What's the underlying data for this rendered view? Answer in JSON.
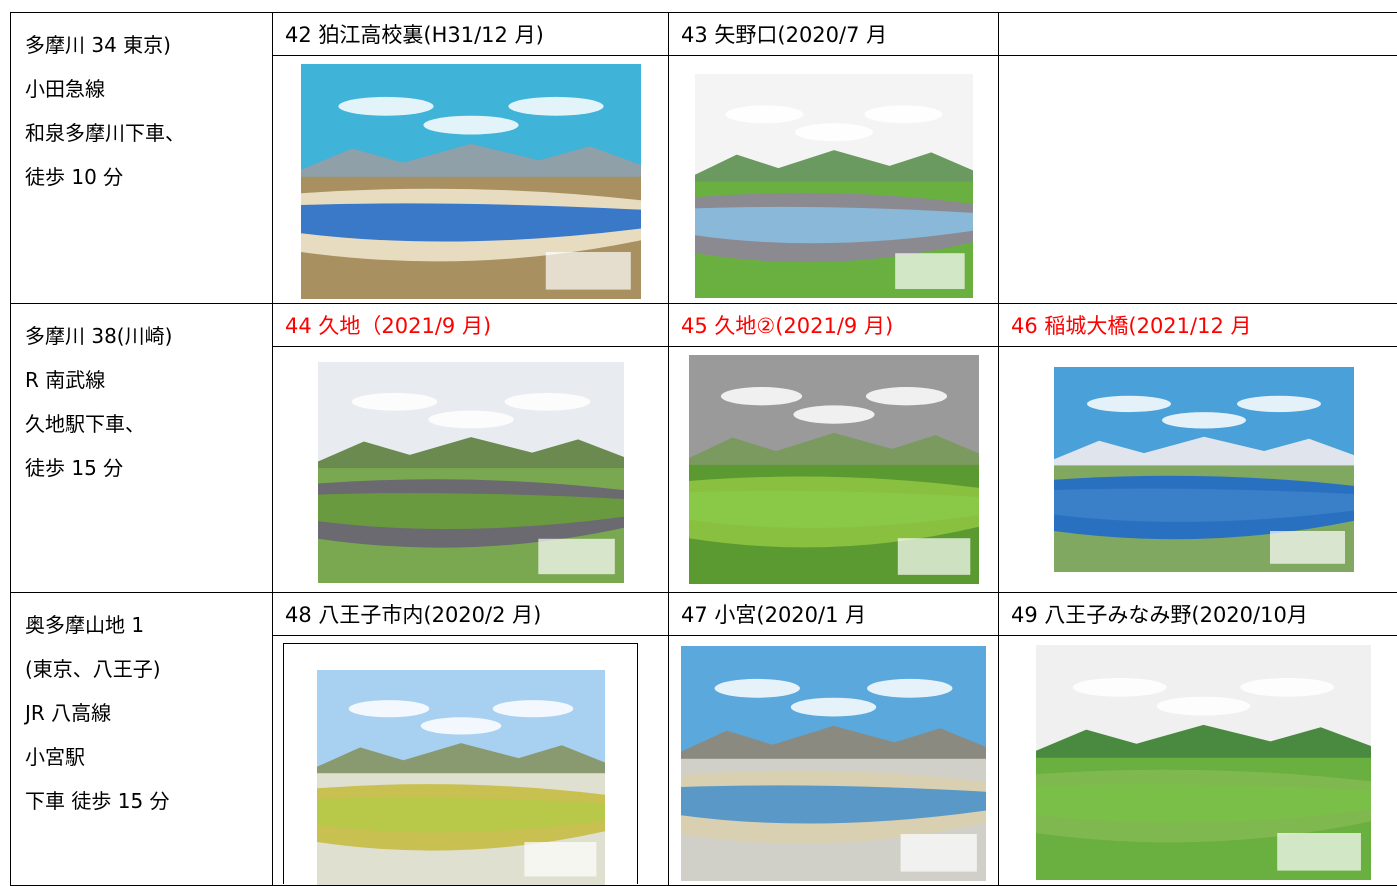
{
  "rows": [
    {
      "location": [
        "多摩川 34 東京)",
        "小田急線",
        "和泉多摩川下車、",
        "徒歩 10 分"
      ],
      "caption_color": "#000000",
      "captions": [
        "42 狛江高校裏(H31/12 月)",
        "43 矢野口(2020/7 月"
      ]
    },
    {
      "location": [
        "多摩川 38(川崎)",
        "R 南武線",
        "久地駅下車、",
        "徒歩 15 分"
      ],
      "caption_color": "#ff0000",
      "captions": [
        "44 久地（2021/9 月)",
        "45 久地②(2021/9 月)",
        "46 稲城大橋(2021/12 月"
      ]
    },
    {
      "location": [
        "奥多摩山地 1",
        "(東京、八王子)",
        "JR 八高線",
        "小宮駅",
        "下車  徒歩 15 分"
      ],
      "caption_color": "#000000",
      "captions": [
        "48 八王子市内(2020/2 月)",
        "47 小宮(2020/1 月",
        "49 八王子みなみ野(2020/10月"
      ]
    }
  ]
}
